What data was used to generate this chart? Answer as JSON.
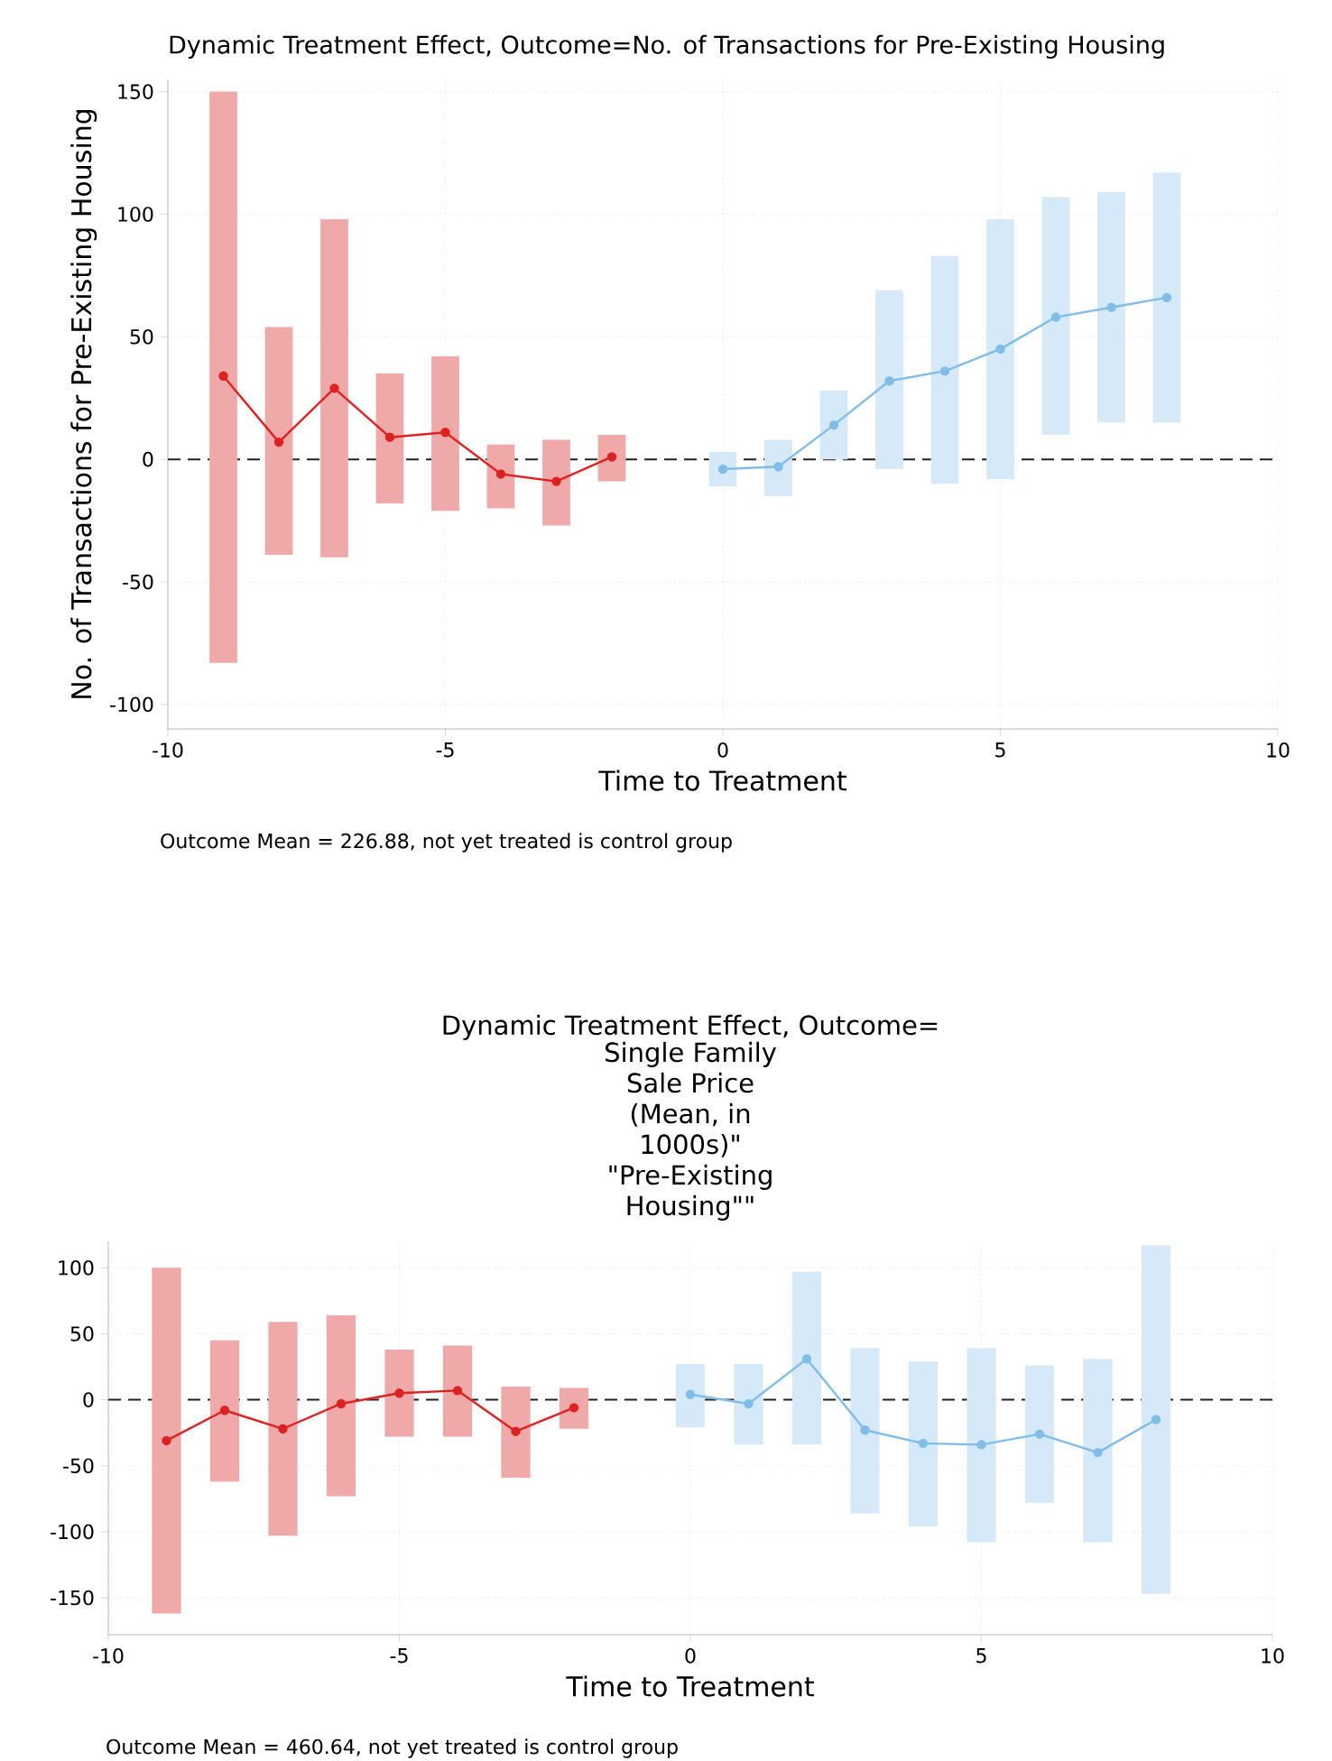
{
  "chart_data": [
    {
      "type": "line",
      "title": "Dynamic Treatment Effect, Outcome=No. of Transactions for Pre-Existing Housing",
      "xlabel": "Time to Treatment",
      "ylabel": "No. of Transactions for Pre-Existing Housing",
      "annotations": [
        "Outcome Mean = 226.88, not yet treated is control group"
      ],
      "xlim": [
        -10,
        10
      ],
      "ylim": [
        -110,
        155
      ],
      "xticks": [
        -10,
        -5,
        0,
        5,
        10
      ],
      "yticks": [
        -100,
        -50,
        0,
        50,
        100,
        150
      ],
      "grid": true,
      "marker": "circle",
      "ref_lines": [
        {
          "axis": "y",
          "value": 0,
          "color": "#222222",
          "line_style": "dashed"
        }
      ],
      "series": [
        {
          "type": "bar",
          "color": "#f0a9a9",
          "x": [
            -9,
            -8,
            -7,
            -6,
            -5,
            -4,
            -3,
            -2
          ],
          "base": [
            -83,
            -39,
            -40,
            -18,
            -21,
            -20,
            -27,
            -9
          ],
          "values": [
            233,
            93,
            138,
            53,
            63,
            26,
            35,
            19
          ]
        },
        {
          "color": "#dd2222",
          "x": [
            -9,
            -8,
            -7,
            -6,
            -5,
            -4,
            -3,
            -2
          ],
          "values": [
            34,
            7,
            29,
            9,
            11,
            -6,
            -9,
            1
          ]
        },
        {
          "type": "bar",
          "color": "#d6e9f8",
          "x": [
            0,
            1,
            2,
            3,
            4,
            5,
            6,
            7,
            8
          ],
          "base": [
            -11,
            -15,
            0,
            -4,
            -10,
            -8,
            10,
            15,
            15
          ],
          "values": [
            14,
            23,
            28,
            73,
            93,
            106,
            97,
            94,
            102
          ]
        },
        {
          "color": "#80bde8",
          "x": [
            0,
            1,
            2,
            3,
            4,
            5,
            6,
            7,
            8
          ],
          "values": [
            -4,
            -3,
            14,
            32,
            36,
            45,
            58,
            62,
            66
          ]
        }
      ]
    },
    {
      "type": "line",
      "title": "Dynamic Treatment Effect, Outcome=",
      "subtitle": "Single Family Sale Price (Mean, in 1000s)\" \"Pre-Existing Housing\"\"",
      "xlabel": "Time to Treatment",
      "annotations": [
        "Outcome Mean = 460.64, not yet treated is control group"
      ],
      "xlim": [
        -10,
        10
      ],
      "ylim": [
        -178,
        120
      ],
      "xticks": [
        -10,
        -5,
        0,
        5,
        10
      ],
      "yticks": [
        -150,
        -100,
        -50,
        0,
        50,
        100
      ],
      "grid": true,
      "marker": "circle",
      "ref_lines": [
        {
          "axis": "y",
          "value": 0,
          "color": "#222222",
          "line_style": "dashed"
        }
      ],
      "series": [
        {
          "type": "bar",
          "color": "#f0a9a9",
          "x": [
            -9,
            -8,
            -7,
            -6,
            -5,
            -4,
            -3,
            -2
          ],
          "base": [
            -162,
            -62,
            -103,
            -73,
            -28,
            -28,
            -59,
            -22
          ],
          "values": [
            262,
            107,
            162,
            137,
            66,
            69,
            69,
            31
          ]
        },
        {
          "color": "#dd2222",
          "x": [
            -9,
            -8,
            -7,
            -6,
            -5,
            -4,
            -3,
            -2
          ],
          "values": [
            -31,
            -8,
            -22,
            -3,
            5,
            7,
            -24,
            -6
          ]
        },
        {
          "type": "bar",
          "color": "#d6e9f8",
          "x": [
            0,
            1,
            2,
            3,
            4,
            5,
            6,
            7,
            8
          ],
          "base": [
            -21,
            -34,
            -34,
            -86,
            -96,
            -108,
            -78,
            -108,
            -147
          ],
          "values": [
            48,
            61,
            131,
            125,
            125,
            147,
            104,
            139,
            264
          ]
        },
        {
          "color": "#80bde8",
          "x": [
            0,
            1,
            2,
            3,
            4,
            5,
            6,
            7,
            8
          ],
          "values": [
            4,
            -3,
            31,
            -23,
            -33,
            -34,
            -26,
            -40,
            -15
          ]
        }
      ]
    }
  ]
}
